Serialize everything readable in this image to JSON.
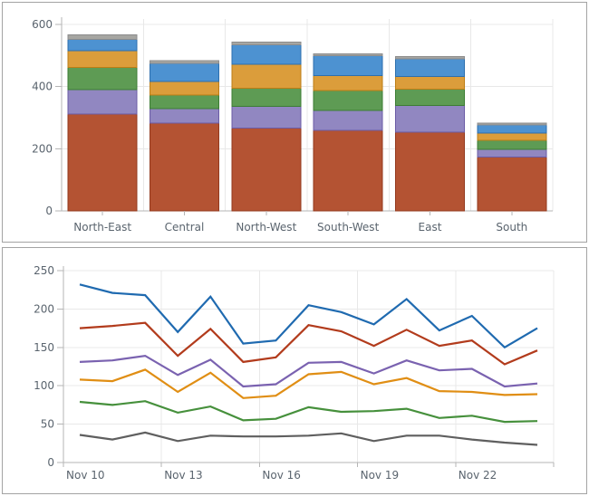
{
  "styles": {
    "background": "#ffffff",
    "panel_border": "#a3a3a3",
    "grid_color": "#e8e8e8",
    "axis_color": "#b5b5b5",
    "label_color": "#5a646e"
  },
  "chart_data": [
    {
      "type": "bar",
      "stacked": true,
      "title": "",
      "legend": "none",
      "grid": true,
      "categories": [
        "North-East",
        "Central",
        "North-West",
        "South-West",
        "East",
        "South"
      ],
      "ylim": [
        0,
        600
      ],
      "yticks": [
        0,
        200,
        400,
        600
      ],
      "series": [
        {
          "id": "stack-1",
          "color": "#b45333",
          "border_color": "#93391e",
          "values": [
            312,
            282,
            266,
            259,
            254,
            174
          ]
        },
        {
          "id": "stack-2",
          "color": "#9187c1",
          "border_color": "#6a5ba5",
          "values": [
            78,
            47,
            71,
            65,
            85,
            24
          ]
        },
        {
          "id": "stack-3",
          "color": "#5e9b54",
          "border_color": "#3c7d33",
          "values": [
            72,
            44,
            57,
            63,
            53,
            29
          ]
        },
        {
          "id": "stack-4",
          "color": "#db9d3b",
          "border_color": "#bc7d15",
          "values": [
            53,
            44,
            78,
            49,
            41,
            24
          ]
        },
        {
          "id": "stack-5",
          "color": "#4d92d1",
          "border_color": "#2d6fae",
          "values": [
            37,
            58,
            63,
            63,
            56,
            25
          ]
        },
        {
          "id": "stack-6",
          "color": "#a6a6a2",
          "border_color": "#8c8c8c",
          "values": [
            15,
            9,
            8,
            7,
            7,
            7
          ]
        }
      ]
    },
    {
      "type": "line",
      "title": "",
      "legend": "none",
      "grid": true,
      "x": [
        "Nov 10",
        "Nov 11",
        "Nov 12",
        "Nov 13",
        "Nov 14",
        "Nov 15",
        "Nov 16",
        "Nov 17",
        "Nov 18",
        "Nov 19",
        "Nov 20",
        "Nov 21",
        "Nov 22",
        "Nov 23",
        "Nov 24"
      ],
      "xtick_labels": [
        "Nov 10",
        "Nov 13",
        "Nov 16",
        "Nov 19",
        "Nov 22"
      ],
      "xtick_every": 3,
      "ylim": [
        0,
        250
      ],
      "yticks": [
        0,
        50,
        100,
        150,
        200,
        250
      ],
      "series": [
        {
          "id": "line-blue",
          "color": "#1f6ab0",
          "values": [
            232,
            221,
            218,
            170,
            216,
            155,
            159,
            205,
            196,
            180,
            213,
            172,
            191,
            150,
            175
          ]
        },
        {
          "id": "line-red",
          "color": "#b23b1c",
          "values": [
            175,
            178,
            182,
            139,
            174,
            131,
            137,
            179,
            171,
            152,
            173,
            152,
            159,
            128,
            146
          ]
        },
        {
          "id": "line-purple",
          "color": "#7a62b0",
          "values": [
            131,
            133,
            139,
            114,
            134,
            99,
            102,
            130,
            131,
            116,
            133,
            120,
            122,
            99,
            103
          ]
        },
        {
          "id": "line-orange",
          "color": "#e08e14",
          "values": [
            108,
            106,
            121,
            92,
            117,
            84,
            87,
            115,
            118,
            102,
            110,
            93,
            92,
            88,
            89
          ]
        },
        {
          "id": "line-green",
          "color": "#46903c",
          "values": [
            79,
            75,
            80,
            65,
            73,
            55,
            57,
            72,
            66,
            67,
            70,
            58,
            61,
            53,
            54
          ]
        },
        {
          "id": "line-gray",
          "color": "#5f5f5f",
          "values": [
            36,
            30,
            39,
            28,
            35,
            34,
            34,
            35,
            38,
            28,
            35,
            35,
            30,
            26,
            23
          ]
        }
      ]
    }
  ]
}
